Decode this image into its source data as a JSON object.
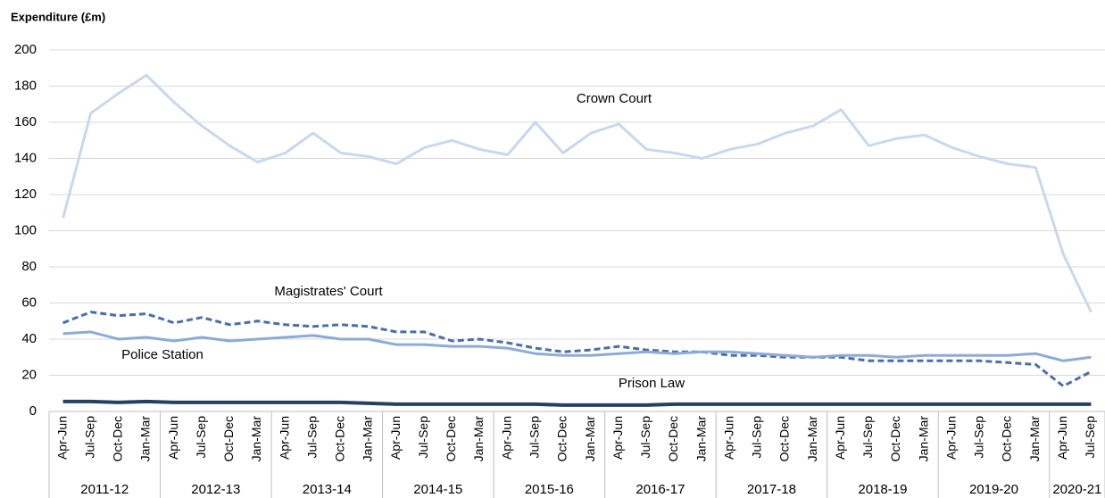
{
  "chart_data": {
    "type": "line",
    "ylabel": "Expenditure (£m)",
    "categories": [
      "Apr-Jun",
      "Jul-Sep",
      "Oct-Dec",
      "Jan-Mar",
      "Apr-Jun",
      "Jul-Sep",
      "Oct-Dec",
      "Jan-Mar",
      "Apr-Jun",
      "Jul-Sep",
      "Oct-Dec",
      "Jan-Mar",
      "Apr-Jun",
      "Jul-Sep",
      "Oct-Dec",
      "Jan-Mar",
      "Apr-Jun",
      "Jul-Sep",
      "Oct-Dec",
      "Jan-Mar",
      "Apr-Jun",
      "Jul-Sep",
      "Oct-Dec",
      "Jan-Mar",
      "Apr-Jun",
      "Jul-Sep",
      "Oct-Dec",
      "Jan-Mar",
      "Apr-Jun",
      "Jul-Sep",
      "Oct-Dec",
      "Jan-Mar",
      "Apr-Jun",
      "Jul-Sep",
      "Oct-Dec",
      "Jan-Mar",
      "Apr-Jun",
      "Jul-Sep"
    ],
    "groups": [
      "2011-12",
      "2012-13",
      "2013-14",
      "2014-15",
      "2015-16",
      "2016-17",
      "2017-18",
      "2018-19",
      "2019-20",
      "2020-21"
    ],
    "series": [
      {
        "name": "Crown Court",
        "color": "#c9d8ec",
        "dashed": false,
        "values": [
          107,
          165,
          176,
          186,
          171,
          158,
          147,
          138,
          143,
          154,
          143,
          141,
          137,
          146,
          150,
          145,
          142,
          160,
          143,
          154,
          159,
          145,
          143,
          140,
          145,
          148,
          154,
          158,
          167,
          147,
          151,
          153,
          146,
          141,
          137,
          135,
          87,
          55
        ]
      },
      {
        "name": "Magistrates' Court",
        "color": "#4a6ea8",
        "dashed": true,
        "values": [
          49,
          55,
          53,
          54,
          49,
          52,
          48,
          50,
          48,
          47,
          48,
          47,
          44,
          44,
          39,
          40,
          38,
          35,
          33,
          34,
          36,
          34,
          33,
          33,
          31,
          31,
          30,
          30,
          30,
          28,
          28,
          28,
          28,
          28,
          27,
          26,
          14,
          22
        ]
      },
      {
        "name": "Police Station",
        "color": "#8eaad6",
        "dashed": false,
        "values": [
          43,
          44,
          40,
          41,
          39,
          41,
          39,
          40,
          41,
          42,
          40,
          40,
          37,
          37,
          36,
          36,
          35,
          32,
          31,
          31,
          32,
          33,
          32,
          33,
          33,
          32,
          31,
          30,
          31,
          31,
          30,
          31,
          31,
          31,
          31,
          32,
          28,
          30
        ]
      },
      {
        "name": "Prison Law",
        "color": "#26405f",
        "dashed": false,
        "values": [
          5.5,
          5.5,
          5,
          5.5,
          5,
          5,
          5,
          5,
          5,
          5,
          5,
          4.5,
          4,
          4,
          4,
          4,
          4,
          4,
          3.5,
          3.5,
          3.5,
          3.5,
          4,
          4,
          4,
          4,
          4,
          4,
          4,
          4,
          4,
          4,
          4,
          4,
          4,
          4,
          4,
          4
        ]
      }
    ],
    "ylim": [
      0,
      200
    ],
    "yticks": [
      0,
      20,
      40,
      60,
      80,
      100,
      120,
      140,
      160,
      180,
      200
    ],
    "grid": true
  }
}
